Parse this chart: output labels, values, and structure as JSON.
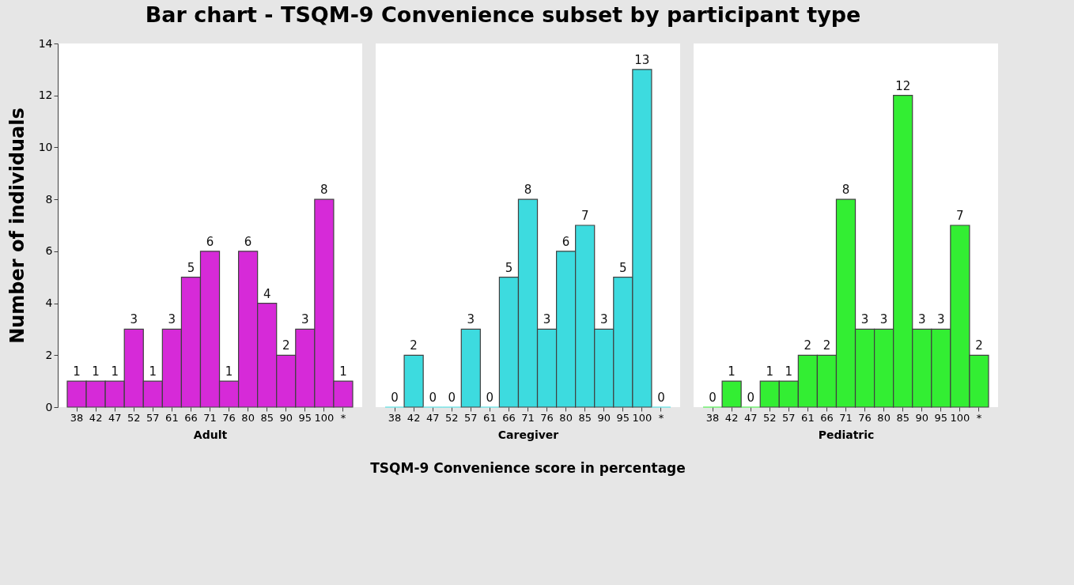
{
  "chart_data": [
    {
      "type": "bar",
      "title": "Bar chart - TSQM-9 Convenience subset by participant type",
      "ylabel": "Number of individuals",
      "xlabel": "Adult",
      "categories": [
        "38",
        "42",
        "47",
        "52",
        "57",
        "61",
        "66",
        "71",
        "76",
        "80",
        "85",
        "90",
        "95",
        "100",
        "*"
      ],
      "values": [
        1,
        1,
        1,
        3,
        1,
        3,
        5,
        6,
        1,
        6,
        4,
        2,
        3,
        8,
        1
      ],
      "color": "#d62ad8",
      "ylim": [
        0,
        14
      ],
      "yticks": [
        0,
        2,
        4,
        6,
        8,
        10,
        12,
        14
      ],
      "data_labels": true
    },
    {
      "type": "bar",
      "xlabel": "Caregiver",
      "categories": [
        "38",
        "42",
        "47",
        "52",
        "57",
        "61",
        "66",
        "71",
        "76",
        "80",
        "85",
        "90",
        "95",
        "100",
        "*"
      ],
      "values": [
        0,
        2,
        0,
        0,
        3,
        0,
        5,
        8,
        3,
        6,
        7,
        3,
        5,
        13,
        0
      ],
      "color": "#3ddbdf",
      "ylim": [
        0,
        14
      ],
      "yticks": [
        0,
        2,
        4,
        6,
        8,
        10,
        12,
        14
      ],
      "data_labels": true,
      "tick_labels": "x",
      "annotations": [
        "TSQM-9 Convenience score in percentage"
      ]
    },
    {
      "type": "bar",
      "xlabel": "Pediatric",
      "categories": [
        "38",
        "42",
        "47",
        "52",
        "57",
        "61",
        "66",
        "71",
        "76",
        "80",
        "85",
        "90",
        "95",
        "100",
        "*"
      ],
      "values": [
        0,
        1,
        0,
        1,
        1,
        2,
        2,
        8,
        3,
        3,
        12,
        3,
        3,
        7,
        2
      ],
      "color": "#33ee33",
      "ylim": [
        0,
        14
      ],
      "yticks": [
        0,
        2,
        4,
        6,
        8,
        10,
        12,
        14
      ],
      "data_labels": true,
      "tick_labels": "x"
    }
  ]
}
